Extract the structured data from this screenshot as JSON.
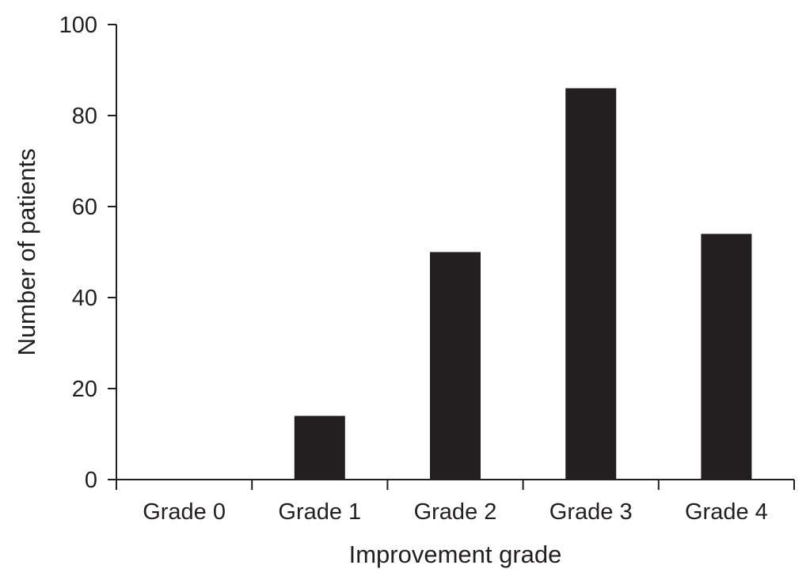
{
  "chart_data": {
    "type": "bar",
    "title": "",
    "xlabel": "Improvement grade",
    "ylabel": "Number of patients",
    "categories": [
      "Grade 0",
      "Grade 1",
      "Grade 2",
      "Grade 3",
      "Grade 4"
    ],
    "values": [
      0,
      14,
      50,
      86,
      54
    ],
    "ylim": [
      0,
      100
    ],
    "yticks": [
      0,
      20,
      40,
      60,
      80,
      100
    ],
    "ytick_labels": [
      "0",
      "20",
      "40",
      "60",
      "80",
      "100"
    ],
    "grid": false,
    "legend": "none",
    "bar_color": "#231f20",
    "axis_color": "#231f20"
  }
}
